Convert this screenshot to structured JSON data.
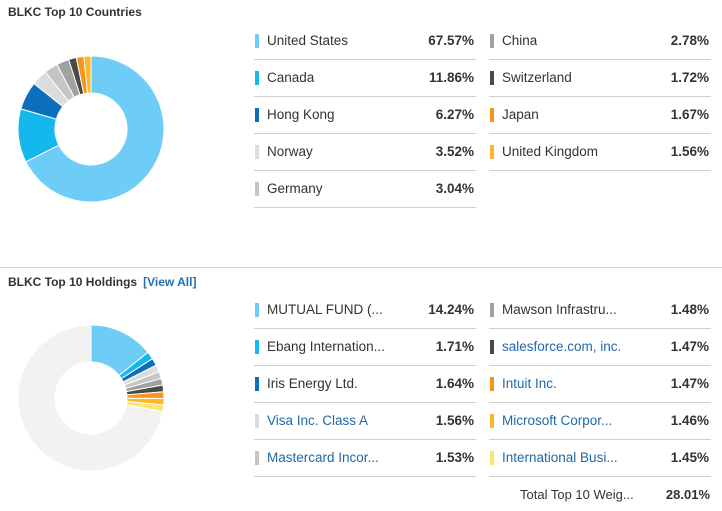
{
  "countries": {
    "title": "BLKC Top 10 Countries",
    "chart_data": {
      "type": "pie",
      "labels": [
        "United States",
        "Canada",
        "Hong Kong",
        "Norway",
        "Germany",
        "China",
        "Switzerland",
        "Japan",
        "United Kingdom"
      ],
      "values": [
        67.57,
        11.86,
        6.27,
        3.52,
        3.04,
        2.78,
        1.72,
        1.67,
        1.56
      ],
      "colors": [
        "#6dcdf7",
        "#14b8ec",
        "#0c6fbd",
        "#dcdcdc",
        "#c5c5c5",
        "#a1a1a1",
        "#4a4a4a",
        "#f7941d",
        "#fbb829"
      ]
    },
    "left": [
      {
        "label": "United States",
        "value": "67.57%",
        "color": "#6dcdf7"
      },
      {
        "label": "Canada",
        "value": "11.86%",
        "color": "#14b8ec"
      },
      {
        "label": "Hong Kong",
        "value": "6.27%",
        "color": "#0c6fbd"
      },
      {
        "label": "Norway",
        "value": "3.52%",
        "color": "#dcdcdc"
      },
      {
        "label": "Germany",
        "value": "3.04%",
        "color": "#c5c5c5"
      }
    ],
    "right": [
      {
        "label": "China",
        "value": "2.78%",
        "color": "#a1a1a1"
      },
      {
        "label": "Switzerland",
        "value": "1.72%",
        "color": "#4a4a4a"
      },
      {
        "label": "Japan",
        "value": "1.67%",
        "color": "#f7941d"
      },
      {
        "label": "United Kingdom",
        "value": "1.56%",
        "color": "#fbb829"
      }
    ]
  },
  "holdings": {
    "title": "BLKC Top 10 Holdings",
    "view_all": "[View All]",
    "chart_data": {
      "type": "pie",
      "labels": [
        "MUTUAL FUND (...",
        "Ebang Internation...",
        "Iris Energy Ltd.",
        "Visa Inc. Class A",
        "Mastercard Incor...",
        "Mawson Infrastru...",
        "salesforce.com, inc.",
        "Intuit Inc.",
        "Microsoft Corpor...",
        "International Busi..."
      ],
      "values": [
        14.24,
        1.71,
        1.64,
        1.56,
        1.53,
        1.48,
        1.47,
        1.47,
        1.46,
        1.45
      ],
      "colors": [
        "#6dcdf7",
        "#14b8ec",
        "#0c6fbd",
        "#dcdcdc",
        "#c5c5c5",
        "#a1a1a1",
        "#4a4a4a",
        "#f7941d",
        "#fbb829",
        "#fde56b"
      ],
      "remainder_color": "#f2f2f2"
    },
    "left": [
      {
        "label": "MUTUAL FUND (...",
        "value": "14.24%",
        "color": "#6dcdf7",
        "link": false
      },
      {
        "label": "Ebang Internation...",
        "value": "1.71%",
        "color": "#14b8ec",
        "link": false
      },
      {
        "label": "Iris Energy Ltd.",
        "value": "1.64%",
        "color": "#0c6fbd",
        "link": false
      },
      {
        "label": "Visa Inc. Class A",
        "value": "1.56%",
        "color": "#dcdcdc",
        "link": true
      },
      {
        "label": "Mastercard Incor...",
        "value": "1.53%",
        "color": "#c5c5c5",
        "link": true
      }
    ],
    "right": [
      {
        "label": "Mawson Infrastru...",
        "value": "1.48%",
        "color": "#a1a1a1",
        "link": false
      },
      {
        "label": "salesforce.com, inc.",
        "value": "1.47%",
        "color": "#4a4a4a",
        "link": true
      },
      {
        "label": "Intuit Inc.",
        "value": "1.47%",
        "color": "#f7941d",
        "link": true
      },
      {
        "label": "Microsoft Corpor...",
        "value": "1.46%",
        "color": "#fbb829",
        "link": true
      },
      {
        "label": "International Busi...",
        "value": "1.45%",
        "color": "#fde56b",
        "link": true
      }
    ],
    "total_label": "Total Top 10 Weig...",
    "total_value": "28.01%"
  }
}
